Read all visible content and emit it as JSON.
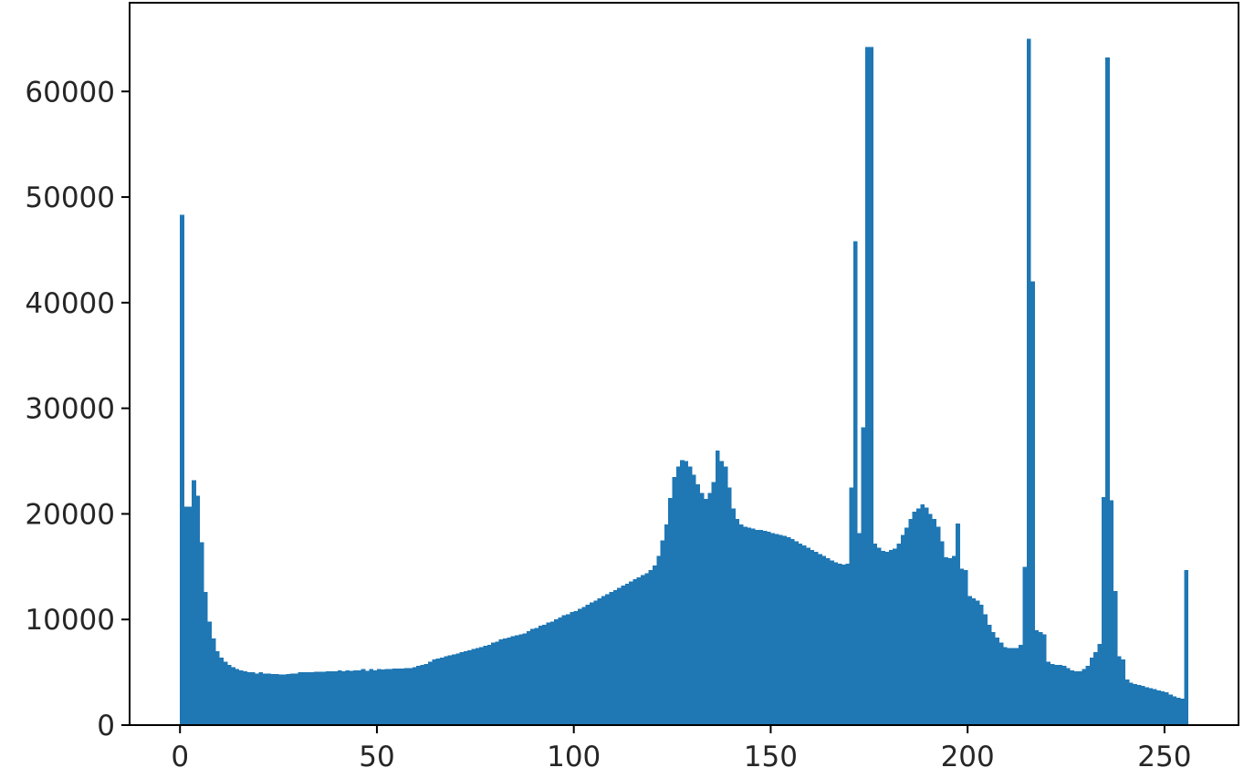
{
  "chart_data": {
    "type": "histogram",
    "color": "#1f77b4",
    "bins": [
      0,
      1,
      2,
      3,
      4,
      5,
      6,
      7,
      8,
      9,
      10,
      11,
      12,
      13,
      14,
      15,
      16,
      17,
      18,
      19,
      20,
      21,
      22,
      23,
      24,
      25,
      26,
      27,
      28,
      29,
      30,
      31,
      32,
      33,
      34,
      35,
      36,
      37,
      38,
      39,
      40,
      41,
      42,
      43,
      44,
      45,
      46,
      47,
      48,
      49,
      50,
      51,
      52,
      53,
      54,
      55,
      56,
      57,
      58,
      59,
      60,
      61,
      62,
      63,
      64,
      65,
      66,
      67,
      68,
      69,
      70,
      71,
      72,
      73,
      74,
      75,
      76,
      77,
      78,
      79,
      80,
      81,
      82,
      83,
      84,
      85,
      86,
      87,
      88,
      89,
      90,
      91,
      92,
      93,
      94,
      95,
      96,
      97,
      98,
      99,
      100,
      101,
      102,
      103,
      104,
      105,
      106,
      107,
      108,
      109,
      110,
      111,
      112,
      113,
      114,
      115,
      116,
      117,
      118,
      119,
      120,
      121,
      122,
      123,
      124,
      125,
      126,
      127,
      128,
      129,
      130,
      131,
      132,
      133,
      134,
      135,
      136,
      137,
      138,
      139,
      140,
      141,
      142,
      143,
      144,
      145,
      146,
      147,
      148,
      149,
      150,
      151,
      152,
      153,
      154,
      155,
      156,
      157,
      158,
      159,
      160,
      161,
      162,
      163,
      164,
      165,
      166,
      167,
      168,
      169,
      170,
      171,
      172,
      173,
      174,
      175,
      176,
      177,
      178,
      179,
      180,
      181,
      182,
      183,
      184,
      185,
      186,
      187,
      188,
      189,
      190,
      191,
      192,
      193,
      194,
      195,
      196,
      197,
      198,
      199,
      200,
      201,
      202,
      203,
      204,
      205,
      206,
      207,
      208,
      209,
      210,
      211,
      212,
      213,
      214,
      215,
      216,
      217,
      218,
      219,
      220,
      221,
      222,
      223,
      224,
      225,
      226,
      227,
      228,
      229,
      230,
      231,
      232,
      233,
      234,
      235,
      236,
      237,
      238,
      239,
      240,
      241,
      242,
      243,
      244,
      245,
      246,
      247,
      248,
      249,
      250,
      251,
      252,
      253,
      254,
      255,
      256
    ],
    "values": [
      48300,
      20700,
      20700,
      23200,
      21700,
      17300,
      12600,
      9800,
      8200,
      7000,
      6400,
      6000,
      5700,
      5500,
      5300,
      5200,
      5100,
      5000,
      5000,
      4900,
      5000,
      4900,
      4900,
      4850,
      4850,
      4800,
      4800,
      4850,
      4900,
      4900,
      5000,
      5000,
      5000,
      5000,
      5050,
      5050,
      5050,
      5100,
      5100,
      5100,
      5200,
      5100,
      5200,
      5150,
      5200,
      5200,
      5300,
      5150,
      5300,
      5200,
      5300,
      5250,
      5300,
      5300,
      5350,
      5350,
      5350,
      5400,
      5400,
      5500,
      5600,
      5700,
      5800,
      6000,
      6200,
      6300,
      6400,
      6500,
      6600,
      6700,
      6800,
      6900,
      7000,
      7100,
      7200,
      7300,
      7400,
      7500,
      7600,
      7800,
      7900,
      8100,
      8200,
      8300,
      8400,
      8500,
      8600,
      8700,
      8900,
      9100,
      9200,
      9400,
      9500,
      9700,
      9800,
      10000,
      10200,
      10400,
      10500,
      10700,
      10800,
      11000,
      11200,
      11400,
      11600,
      11800,
      12000,
      12200,
      12400,
      12600,
      12800,
      13000,
      13200,
      13400,
      13600,
      13800,
      14000,
      14200,
      14400,
      14700,
      15100,
      16000,
      17500,
      19000,
      21500,
      23500,
      24500,
      25100,
      25000,
      24500,
      23700,
      22800,
      22000,
      21400,
      22000,
      23000,
      26000,
      25000,
      24500,
      22500,
      20500,
      19500,
      19000,
      18800,
      18700,
      18600,
      18500,
      18500,
      18400,
      18300,
      18200,
      18100,
      18000,
      17900,
      17800,
      17600,
      17400,
      17200,
      17000,
      16800,
      16600,
      16400,
      16200,
      16000,
      15800,
      15600,
      15400,
      15300,
      15200,
      15300,
      22500,
      45800,
      18200,
      28200,
      64200,
      64200,
      17200,
      16800,
      16500,
      16400,
      16600,
      16700,
      17200,
      18000,
      18700,
      19500,
      20200,
      20500,
      20900,
      20600,
      20000,
      19500,
      18800,
      17400,
      15900,
      15800,
      16000,
      19100,
      14800,
      14700,
      12200,
      12000,
      11800,
      11400,
      10500,
      9500,
      8800,
      8300,
      7800,
      7400,
      7300,
      7300,
      7300,
      7600,
      15000,
      65000,
      42000,
      9000,
      8800,
      8600,
      6000,
      5800,
      5700,
      5700,
      5600,
      5400,
      5200,
      5100,
      5100,
      5300,
      5600,
      6400,
      6900,
      7700,
      21600,
      63200,
      21300,
      12700,
      6500,
      6200,
      4300,
      4000,
      3900,
      3800,
      3700,
      3600,
      3500,
      3400,
      3300,
      3200,
      3100,
      2900,
      2700,
      2600,
      2500,
      14700
    ],
    "xlim": [
      -12.8,
      268.8
    ],
    "xticks": [
      0,
      50,
      100,
      150,
      200,
      250
    ],
    "ylim": [
      0,
      68400
    ],
    "yticks": [
      0,
      10000,
      20000,
      30000,
      40000,
      50000,
      60000
    ]
  }
}
